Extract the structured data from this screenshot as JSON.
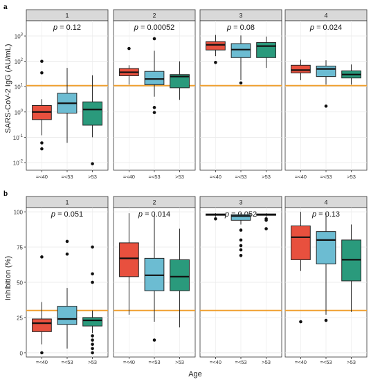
{
  "figure": {
    "panel_labels": [
      "a",
      "b"
    ],
    "shared_xlabel": "Age"
  },
  "chart_data": [
    {
      "type": "boxplot",
      "panel": "a",
      "ylabel": "SARS-CoV-2 IgG (AU/mL)",
      "yscale": "log10",
      "ylim": [
        0.005,
        4000
      ],
      "yticks": [
        {
          "value": 0.01,
          "base": "10",
          "exp": "-2"
        },
        {
          "value": 0.1,
          "base": "10",
          "exp": "-1"
        },
        {
          "value": 1,
          "base": "10",
          "exp": "0"
        },
        {
          "value": 10,
          "base": "10",
          "exp": "1"
        },
        {
          "value": 100,
          "base": "10",
          "exp": "2"
        },
        {
          "value": 1000,
          "base": "10",
          "exp": "3"
        }
      ],
      "threshold": 11,
      "categories": [
        "=<40",
        "=<53",
        ">53"
      ],
      "box_colors": [
        "#e8503e",
        "#6cbcd2",
        "#2a9a7c"
      ],
      "threshold_color": "#f0a030",
      "facets": [
        {
          "strip": "1",
          "p_label": "p",
          "p_value": "= 0.12",
          "boxes": [
            {
              "q1": 0.5,
              "median": 1.0,
              "q3": 1.8,
              "whislo": 0.12,
              "whishi": 3.2,
              "outliers": [
                100,
                35,
                0.06,
                0.035
              ]
            },
            {
              "q1": 0.9,
              "median": 2.2,
              "q3": 5.5,
              "whislo": 0.06,
              "whishi": 55,
              "outliers": []
            },
            {
              "q1": 0.3,
              "median": 1.25,
              "q3": 2.5,
              "whislo": 0.1,
              "whishi": 28,
              "outliers": [
                0.009
              ]
            }
          ]
        },
        {
          "strip": "2",
          "p_label": "p",
          "p_value": "= 0.00052",
          "boxes": [
            {
              "q1": 27,
              "median": 37,
              "q3": 52,
              "whislo": 12,
              "whishi": 70,
              "outliers": [
                320
              ]
            },
            {
              "q1": 12,
              "median": 20,
              "q3": 40,
              "whislo": 4,
              "whishi": 260,
              "outliers": [
                780,
                1.5,
                0.95
              ]
            },
            {
              "q1": 9,
              "median": 25,
              "q3": 30,
              "whislo": 3,
              "whishi": 100,
              "outliers": []
            }
          ]
        },
        {
          "strip": "3",
          "p_label": "p",
          "p_value": "= 0.08",
          "boxes": [
            {
              "q1": 280,
              "median": 450,
              "q3": 600,
              "whislo": 160,
              "whishi": 1100,
              "outliers": [
                90
              ]
            },
            {
              "q1": 140,
              "median": 290,
              "q3": 500,
              "whislo": 18,
              "whishi": 1050,
              "outliers": [
                14
              ]
            },
            {
              "q1": 140,
              "median": 400,
              "q3": 550,
              "whislo": 55,
              "whishi": 950,
              "outliers": []
            }
          ]
        },
        {
          "strip": "4",
          "p_label": "p",
          "p_value": "= 0.024",
          "boxes": [
            {
              "q1": 35,
              "median": 45,
              "q3": 70,
              "whislo": 18,
              "whishi": 115,
              "outliers": []
            },
            {
              "q1": 25,
              "median": 50,
              "q3": 65,
              "whislo": 12,
              "whishi": 110,
              "outliers": [
                1.7
              ]
            },
            {
              "q1": 22,
              "median": 30,
              "q3": 42,
              "whislo": 12,
              "whishi": 75,
              "outliers": []
            }
          ]
        }
      ]
    },
    {
      "type": "boxplot",
      "panel": "b",
      "ylabel": "Inhibition (%)",
      "yscale": "linear",
      "ylim": [
        -3,
        103
      ],
      "yticks": [
        {
          "value": 0,
          "label": "0"
        },
        {
          "value": 25,
          "label": "25"
        },
        {
          "value": 50,
          "label": "50"
        },
        {
          "value": 75,
          "label": "75"
        },
        {
          "value": 100,
          "label": "100"
        }
      ],
      "threshold": 30,
      "categories": [
        "=<40",
        "=<53",
        ">53"
      ],
      "box_colors": [
        "#e8503e",
        "#6cbcd2",
        "#2a9a7c"
      ],
      "threshold_color": "#f0a030",
      "facets": [
        {
          "strip": "1",
          "p_label": "p",
          "p_value": "= 0.051",
          "boxes": [
            {
              "q1": 15,
              "median": 21,
              "q3": 24,
              "whislo": 6,
              "whishi": 36,
              "outliers": [
                68,
                0
              ]
            },
            {
              "q1": 20,
              "median": 24,
              "q3": 33,
              "whislo": 3,
              "whishi": 46,
              "outliers": [
                79,
                70
              ]
            },
            {
              "q1": 19,
              "median": 23,
              "q3": 25,
              "whislo": 14,
              "whishi": 30,
              "outliers": [
                75,
                56,
                50,
                12,
                9,
                6,
                3,
                0
              ]
            }
          ]
        },
        {
          "strip": "2",
          "p_label": "p",
          "p_value": "= 0.014",
          "boxes": [
            {
              "q1": 54,
              "median": 67,
              "q3": 78,
              "whislo": 27,
              "whishi": 99,
              "outliers": []
            },
            {
              "q1": 44,
              "median": 55,
              "q3": 67,
              "whislo": 22,
              "whishi": 98,
              "outliers": [
                9
              ]
            },
            {
              "q1": 44,
              "median": 54,
              "q3": 66,
              "whislo": 18,
              "whishi": 88,
              "outliers": []
            }
          ]
        },
        {
          "strip": "3",
          "p_label": "p",
          "p_value": "= 0.052",
          "boxes": [
            {
              "q1": 97.5,
              "median": 98,
              "q3": 98.5,
              "whislo": 96.5,
              "whishi": 99,
              "outliers": [
                95
              ]
            },
            {
              "q1": 94,
              "median": 97,
              "q3": 98,
              "whislo": 91,
              "whishi": 99,
              "outliers": [
                87,
                80,
                76,
                73,
                69
              ]
            },
            {
              "q1": 97.5,
              "median": 98,
              "q3": 98.5,
              "whislo": 96.5,
              "whishi": 99,
              "outliers": [
                95,
                94,
                88
              ]
            }
          ]
        },
        {
          "strip": "4",
          "p_label": "p",
          "p_value": "= 0.13",
          "boxes": [
            {
              "q1": 66,
              "median": 82,
              "q3": 90,
              "whislo": 58,
              "whishi": 100,
              "outliers": [
                22
              ]
            },
            {
              "q1": 63,
              "median": 80,
              "q3": 86,
              "whislo": 27,
              "whishi": 99,
              "outliers": [
                23
              ]
            },
            {
              "q1": 51,
              "median": 66,
              "q3": 80,
              "whislo": 29,
              "whishi": 91,
              "outliers": []
            }
          ]
        }
      ]
    }
  ]
}
